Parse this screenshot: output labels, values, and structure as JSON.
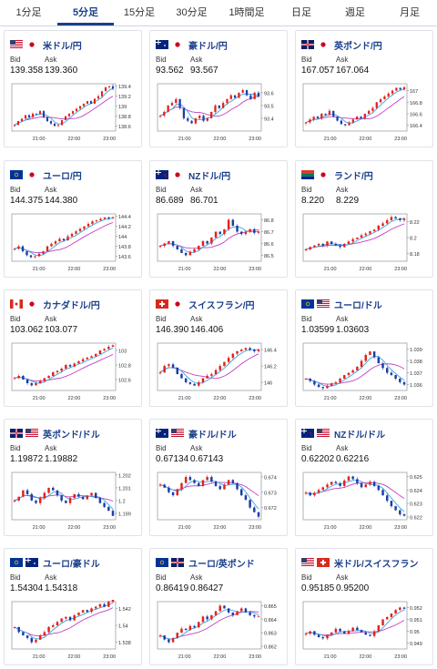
{
  "tabs": [
    {
      "label": "1分足",
      "active": false
    },
    {
      "label": "5分足",
      "active": true
    },
    {
      "label": "15分足",
      "active": false
    },
    {
      "label": "30分足",
      "active": false
    },
    {
      "label": "1時間足",
      "active": false
    },
    {
      "label": "日足",
      "active": false
    },
    {
      "label": "週足",
      "active": false
    },
    {
      "label": "月足",
      "active": false
    }
  ],
  "bid_label": "Bid",
  "ask_label": "Ask",
  "cards": [
    {
      "pair": "米ドル/円",
      "bid": "139.358",
      "ask": "139.360",
      "flags": [
        "us",
        "jp"
      ],
      "chart_data": {
        "type": "line",
        "x_ticks": [
          "21:00",
          "22:00",
          "23:00"
        ],
        "y_ticks": [
          "138.6",
          "138.8",
          "139",
          "139.2",
          "139.4"
        ],
        "ylim": [
          138.5,
          139.45
        ],
        "values": [
          138.62,
          138.7,
          138.75,
          138.82,
          138.78,
          138.85,
          138.84,
          138.9,
          138.78,
          138.7,
          138.65,
          138.6,
          138.62,
          138.72,
          138.8,
          138.85,
          138.9,
          138.95,
          139.0,
          139.05,
          139.1,
          139.05,
          139.15,
          139.2,
          139.3,
          139.38,
          139.4,
          139.35
        ]
      }
    },
    {
      "pair": "豪ドル/円",
      "bid": "93.562",
      "ask": "93.567",
      "flags": [
        "au",
        "jp"
      ],
      "chart_data": {
        "type": "line",
        "x_ticks": [
          "21:00",
          "22:00",
          "23:00"
        ],
        "y_ticks": [
          "93.4",
          "93.5",
          "93.6"
        ],
        "ylim": [
          93.3,
          93.67
        ],
        "values": [
          93.42,
          93.45,
          93.5,
          93.52,
          93.55,
          93.48,
          93.4,
          93.38,
          93.36,
          93.4,
          93.42,
          93.38,
          93.4,
          93.45,
          93.5,
          93.48,
          93.52,
          93.55,
          93.58,
          93.56,
          93.6,
          93.62,
          93.58,
          93.55,
          93.6,
          93.57
        ]
      }
    },
    {
      "pair": "英ポンド/円",
      "bid": "167.057",
      "ask": "167.064",
      "flags": [
        "gb",
        "jp"
      ],
      "chart_data": {
        "type": "line",
        "x_ticks": [
          "21:00",
          "22:00",
          "23:00"
        ],
        "y_ticks": [
          "166.4",
          "166.6",
          "166.8",
          "167"
        ],
        "ylim": [
          166.3,
          167.12
        ],
        "values": [
          166.45,
          166.5,
          166.55,
          166.52,
          166.6,
          166.58,
          166.65,
          166.55,
          166.48,
          166.42,
          166.4,
          166.45,
          166.5,
          166.55,
          166.52,
          166.6,
          166.65,
          166.7,
          166.8,
          166.85,
          166.9,
          166.95,
          167.0,
          167.05,
          167.02,
          167.06
        ]
      }
    },
    {
      "pair": "ユーロ/円",
      "bid": "144.375",
      "ask": "144.380",
      "flags": [
        "eu",
        "jp"
      ],
      "chart_data": {
        "type": "line",
        "x_ticks": [
          "21:00",
          "22:00",
          "23:00"
        ],
        "y_ticks": [
          "143.6",
          "143.8",
          "144",
          "144.2",
          "144.4"
        ],
        "ylim": [
          143.5,
          144.45
        ],
        "values": [
          143.75,
          143.8,
          143.7,
          143.62,
          143.58,
          143.6,
          143.65,
          143.7,
          143.8,
          143.85,
          143.9,
          143.95,
          143.92,
          144.0,
          144.05,
          144.1,
          144.15,
          144.2,
          144.25,
          144.3,
          144.32,
          144.35,
          144.38,
          144.36,
          144.38
        ]
      }
    },
    {
      "pair": "NZドル/円",
      "bid": "86.689",
      "ask": "86.701",
      "flags": [
        "nz",
        "jp"
      ],
      "chart_data": {
        "type": "line",
        "x_ticks": [
          "21:00",
          "22:00",
          "23:00"
        ],
        "y_ticks": [
          "86.5",
          "86.6",
          "86.7",
          "86.8"
        ],
        "ylim": [
          86.45,
          86.85
        ],
        "values": [
          86.58,
          86.6,
          86.62,
          86.58,
          86.55,
          86.52,
          86.5,
          86.53,
          86.55,
          86.58,
          86.62,
          86.6,
          86.65,
          86.7,
          86.68,
          86.72,
          86.8,
          86.75,
          86.7,
          86.68,
          86.7,
          86.72,
          86.69,
          86.7
        ]
      }
    },
    {
      "pair": "ランド/円",
      "bid": "8.220",
      "ask": "8.229",
      "flags": [
        "za",
        "jp"
      ],
      "chart_data": {
        "type": "line",
        "x_ticks": [
          "21:00",
          "22:00",
          "23:00"
        ],
        "y_ticks": [
          "8.18",
          "8.2",
          "8.22"
        ],
        "ylim": [
          8.17,
          8.23
        ],
        "values": [
          8.185,
          8.188,
          8.19,
          8.192,
          8.19,
          8.195,
          8.192,
          8.19,
          8.188,
          8.192,
          8.195,
          8.198,
          8.2,
          8.203,
          8.205,
          8.208,
          8.21,
          8.215,
          8.218,
          8.222,
          8.226,
          8.224,
          8.222,
          8.224
        ]
      }
    },
    {
      "pair": "カナダドル/円",
      "bid": "103.062",
      "ask": "103.077",
      "flags": [
        "ca",
        "jp"
      ],
      "chart_data": {
        "type": "line",
        "x_ticks": [
          "21:00",
          "22:00",
          "23:00"
        ],
        "y_ticks": [
          "102.6",
          "102.8",
          "103"
        ],
        "ylim": [
          102.45,
          103.1
        ],
        "values": [
          102.62,
          102.65,
          102.6,
          102.55,
          102.52,
          102.55,
          102.58,
          102.62,
          102.65,
          102.7,
          102.72,
          102.75,
          102.8,
          102.78,
          102.82,
          102.85,
          102.88,
          102.9,
          102.92,
          102.95,
          103.0,
          103.02,
          103.05,
          103.07
        ]
      }
    },
    {
      "pair": "スイスフラン/円",
      "bid": "146.390",
      "ask": "146.406",
      "flags": [
        "ch",
        "jp"
      ],
      "chart_data": {
        "type": "line",
        "x_ticks": [
          "21:00",
          "22:00",
          "23:00"
        ],
        "y_ticks": [
          "146",
          "146.2",
          "146.4"
        ],
        "ylim": [
          145.9,
          146.48
        ],
        "values": [
          146.12,
          146.2,
          146.22,
          146.18,
          146.1,
          146.05,
          146.0,
          145.98,
          145.96,
          146.0,
          146.05,
          146.08,
          146.1,
          146.15,
          146.2,
          146.25,
          146.3,
          146.35,
          146.38,
          146.4,
          146.42,
          146.4,
          146.38,
          146.4
        ]
      }
    },
    {
      "pair": "ユーロ/ドル",
      "bid": "1.03599",
      "ask": "1.03603",
      "flags": [
        "eu",
        "us"
      ],
      "chart_data": {
        "type": "line",
        "x_ticks": [
          "21:00",
          "22:00",
          "23:00"
        ],
        "y_ticks": [
          "1.036",
          "1.037",
          "1.038",
          "1.039"
        ],
        "ylim": [
          1.0355,
          1.0395
        ],
        "values": [
          1.0365,
          1.0363,
          1.036,
          1.0358,
          1.0357,
          1.0359,
          1.0361,
          1.0362,
          1.0365,
          1.0368,
          1.037,
          1.0372,
          1.0375,
          1.038,
          1.0385,
          1.0388,
          1.0383,
          1.0378,
          1.0374,
          1.037,
          1.0368,
          1.0365,
          1.0362,
          1.036
        ]
      }
    },
    {
      "pair": "英ポンド/ドル",
      "bid": "1.19872",
      "ask": "1.19882",
      "flags": [
        "gb",
        "us"
      ],
      "chart_data": {
        "type": "line",
        "x_ticks": [
          "21:00",
          "22:00",
          "23:00"
        ],
        "y_ticks": [
          "1.199",
          "1.2",
          "1.201",
          "1.202"
        ],
        "ylim": [
          1.1985,
          1.2022
        ],
        "values": [
          1.2,
          1.2003,
          1.2008,
          1.2005,
          1.2,
          1.1998,
          1.2002,
          1.2006,
          1.201,
          1.2008,
          1.2004,
          1.2,
          1.1998,
          1.2002,
          1.2005,
          1.2003,
          1.2001,
          1.2004,
          1.2006,
          1.2002,
          1.1998,
          1.1995,
          1.1992,
          1.1988
        ]
      }
    },
    {
      "pair": "豪ドル/ドル",
      "bid": "0.67134",
      "ask": "0.67143",
      "flags": [
        "au",
        "us"
      ],
      "chart_data": {
        "type": "line",
        "x_ticks": [
          "21:00",
          "22:00",
          "23:00"
        ],
        "y_ticks": [
          "0.672",
          "0.673",
          "0.674"
        ],
        "ylim": [
          0.6712,
          0.6743
        ],
        "values": [
          0.6735,
          0.6733,
          0.673,
          0.6728,
          0.6732,
          0.6736,
          0.674,
          0.6738,
          0.6736,
          0.6734,
          0.6738,
          0.674,
          0.6737,
          0.6734,
          0.6732,
          0.6735,
          0.6738,
          0.6736,
          0.6732,
          0.6728,
          0.6725,
          0.672,
          0.6717,
          0.6714
        ]
      }
    },
    {
      "pair": "NZドル/ドル",
      "bid": "0.62202",
      "ask": "0.62216",
      "flags": [
        "nz",
        "us"
      ],
      "chart_data": {
        "type": "line",
        "x_ticks": [
          "21:00",
          "22:00",
          "23:00"
        ],
        "y_ticks": [
          "0.622",
          "0.623",
          "0.624",
          "0.625"
        ],
        "ylim": [
          0.6218,
          0.6253
        ],
        "values": [
          0.6238,
          0.6236,
          0.6238,
          0.624,
          0.6242,
          0.6244,
          0.6246,
          0.6245,
          0.6243,
          0.6247,
          0.625,
          0.6248,
          0.6245,
          0.6242,
          0.6244,
          0.6246,
          0.6243,
          0.624,
          0.6236,
          0.6232,
          0.6228,
          0.6225,
          0.6222,
          0.6221
        ]
      }
    },
    {
      "pair": "ユーロ/豪ドル",
      "bid": "1.54304",
      "ask": "1.54318",
      "flags": [
        "eu",
        "au"
      ],
      "chart_data": {
        "type": "line",
        "x_ticks": [
          "21:00",
          "22:00",
          "23:00"
        ],
        "y_ticks": [
          "1.538",
          "1.54",
          "1.542"
        ],
        "ylim": [
          1.5372,
          1.5428
        ],
        "values": [
          1.5398,
          1.5392,
          1.5388,
          1.5385,
          1.538,
          1.5383,
          1.5388,
          1.5392,
          1.5398,
          1.54,
          1.5404,
          1.5408,
          1.541,
          1.5406,
          1.5412,
          1.5415,
          1.5418,
          1.5416,
          1.542,
          1.5422,
          1.5425,
          1.5422,
          1.5428,
          1.5431
        ]
      }
    },
    {
      "pair": "ユーロ/英ポンド",
      "bid": "0.86419",
      "ask": "0.86427",
      "flags": [
        "eu",
        "gb"
      ],
      "chart_data": {
        "type": "line",
        "x_ticks": [
          "21:00",
          "22:00",
          "23:00"
        ],
        "y_ticks": [
          "0.862",
          "0.863",
          "0.864",
          "0.865"
        ],
        "ylim": [
          0.8618,
          0.8653
        ],
        "values": [
          0.8628,
          0.8625,
          0.8623,
          0.8626,
          0.863,
          0.8633,
          0.8632,
          0.8635,
          0.8634,
          0.8638,
          0.8642,
          0.864,
          0.8643,
          0.8646,
          0.865,
          0.8648,
          0.8645,
          0.8643,
          0.8646,
          0.8648,
          0.8645,
          0.8643,
          0.8642,
          0.8642
        ]
      }
    },
    {
      "pair": "米ドル/スイスフラン",
      "bid": "0.95185",
      "ask": "0.95200",
      "flags": [
        "us",
        "ch"
      ],
      "chart_data": {
        "type": "line",
        "x_ticks": [
          "21:00",
          "22:00",
          "23:00"
        ],
        "y_ticks": [
          "0.949",
          "0.95",
          "0.951",
          "0.952"
        ],
        "ylim": [
          0.9485,
          0.9525
        ],
        "values": [
          0.9498,
          0.95,
          0.9497,
          0.9495,
          0.9494,
          0.9497,
          0.9499,
          0.9502,
          0.95,
          0.9498,
          0.95,
          0.9503,
          0.9501,
          0.9499,
          0.9497,
          0.9496,
          0.95,
          0.9505,
          0.951,
          0.9512,
          0.9515,
          0.9518,
          0.952,
          0.9519
        ]
      }
    }
  ],
  "colors": {
    "up": "#e2231a",
    "down": "#1c3ea6",
    "ma_short": "#3aa3e3",
    "ma_long": "#c23fc2",
    "brand": "#1a3f8b"
  }
}
